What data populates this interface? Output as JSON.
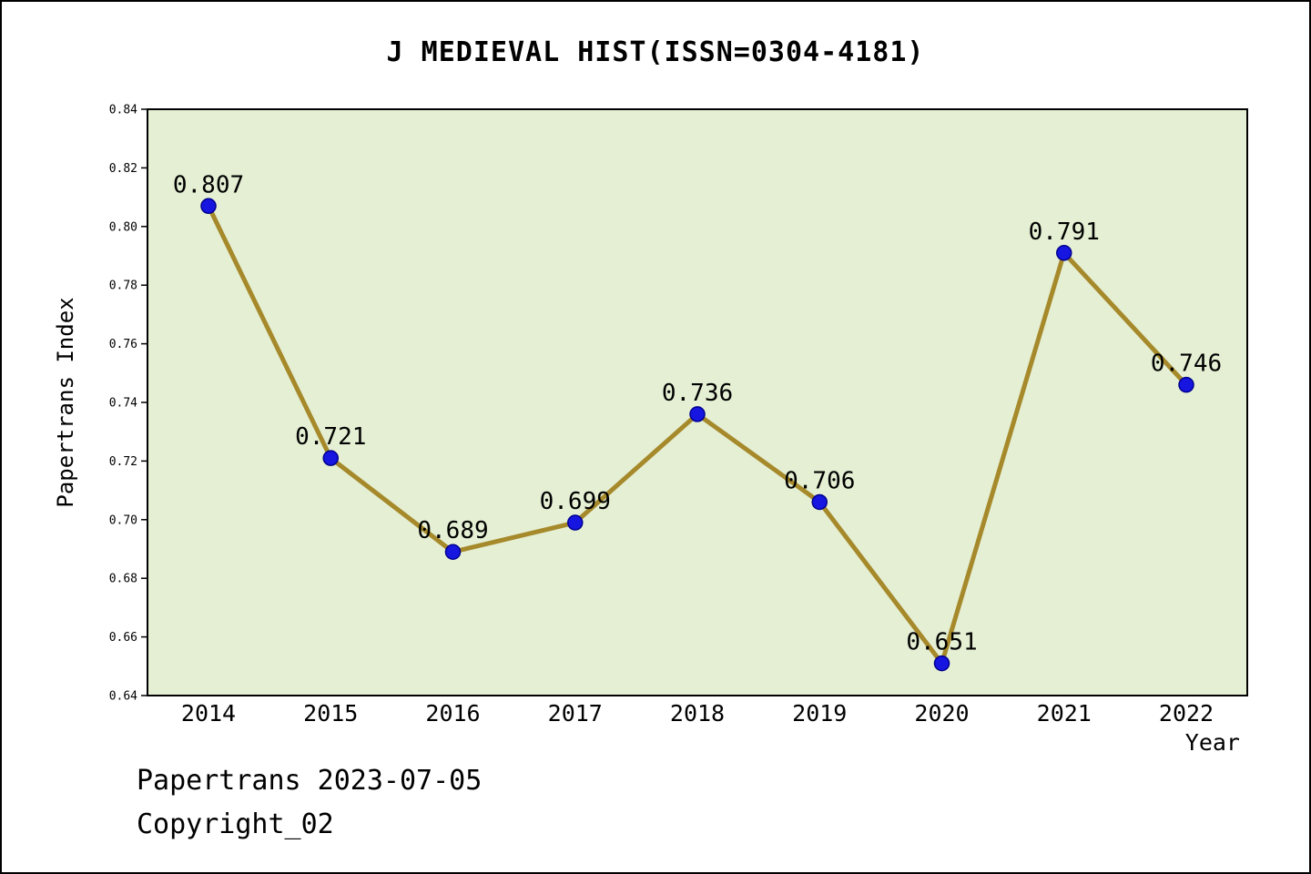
{
  "title": "J MEDIEVAL HIST(ISSN=0304-4181)",
  "footer": {
    "line1": "Papertrans 2023-07-05",
    "line2": "Copyright_02"
  },
  "chart_data": {
    "type": "line",
    "title": "J MEDIEVAL HIST(ISSN=0304-4181)",
    "x": [
      2014,
      2015,
      2016,
      2017,
      2018,
      2019,
      2020,
      2021,
      2022
    ],
    "values": [
      0.807,
      0.721,
      0.689,
      0.699,
      0.736,
      0.706,
      0.651,
      0.791,
      0.746
    ],
    "point_labels": [
      "0.807",
      "0.721",
      "0.689",
      "0.699",
      "0.736",
      "0.706",
      "0.651",
      "0.791",
      "0.746"
    ],
    "xlabel": "Year",
    "ylabel": "Papertrans Index",
    "ylim": [
      0.64,
      0.84
    ],
    "ytick_step": 0.02,
    "grid": false,
    "legend": "none",
    "colors": {
      "plot_background": "#e4efd3",
      "line": "#a6892a",
      "marker_fill": "#1616e0",
      "marker_edge": "#000090",
      "text": "#000000",
      "axis": "#000000"
    }
  }
}
